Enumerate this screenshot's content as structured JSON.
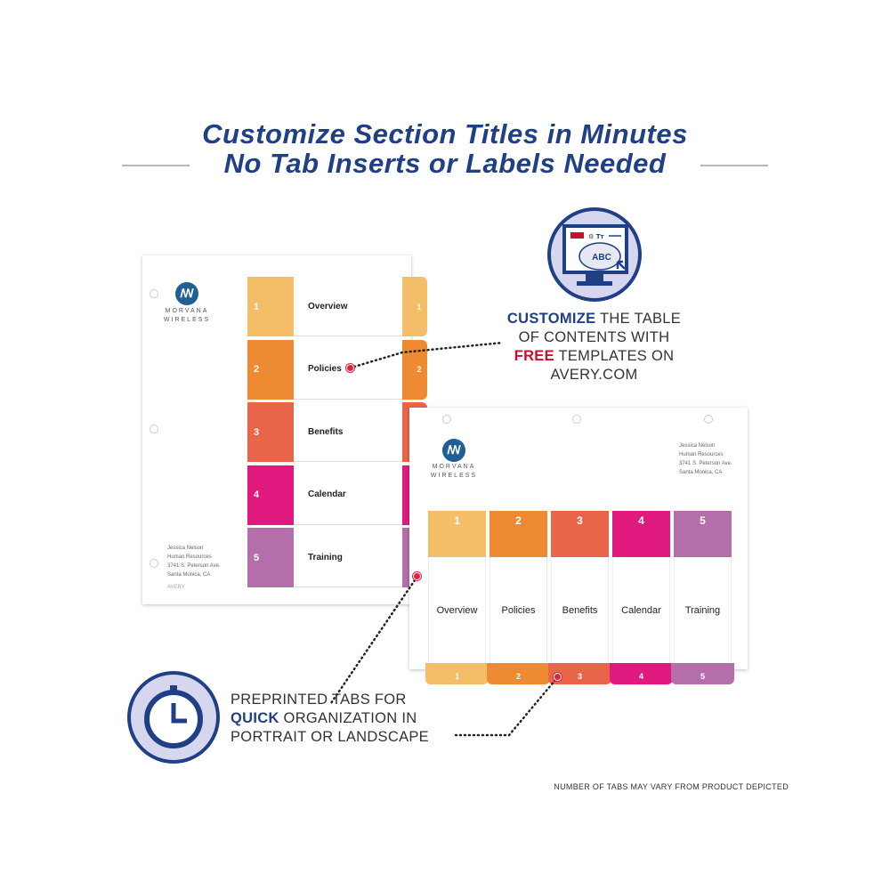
{
  "headline": {
    "line1": "Customize Section Titles in Minutes",
    "line2": "No Tab Inserts or Labels Needed"
  },
  "brand": {
    "name_line1": "MORVANA",
    "name_line2": "WIRELESS",
    "logo_glyph": "ꟿ"
  },
  "address": [
    "Jessica Nelson",
    "Human Resources",
    "3741 S. Peterson Ave.",
    "Santa Monica, CA"
  ],
  "footer_brand": "AVERY",
  "tabs": [
    {
      "num": "1",
      "label": "Overview",
      "color": "#F3BE67"
    },
    {
      "num": "2",
      "label": "Policies",
      "color": "#EE8A32"
    },
    {
      "num": "3",
      "label": "Benefits",
      "color": "#E8654A"
    },
    {
      "num": "4",
      "label": "Calendar",
      "color": "#E0197F"
    },
    {
      "num": "5",
      "label": "Training",
      "color": "#B46FAA"
    }
  ],
  "callout_top": {
    "strong": "CUSTOMIZE",
    "rest1": " THE TABLE",
    "line2": "OF CONTENTS WITH",
    "free": "FREE",
    "rest3": " TEMPLATES ON",
    "line4": "AVERY.COM",
    "icon": "computer-monitor-icon",
    "icon_screen_text": "ABC",
    "icon_logo_text": "AVERY",
    "icon_toolbar_text": "⚙ Tт"
  },
  "callout_bottom": {
    "line1": "PREPRINTED TABS FOR",
    "strong": "QUICK",
    "rest2": " ORGANIZATION IN",
    "line3": "PORTRAIT OR LANDSCAPE",
    "icon": "stopwatch-icon"
  },
  "disclaimer": "NUMBER OF TABS MAY VARY FROM PRODUCT DEPICTED",
  "colors": {
    "navy": "#1F3F87",
    "accent_red": "#D7263D"
  }
}
